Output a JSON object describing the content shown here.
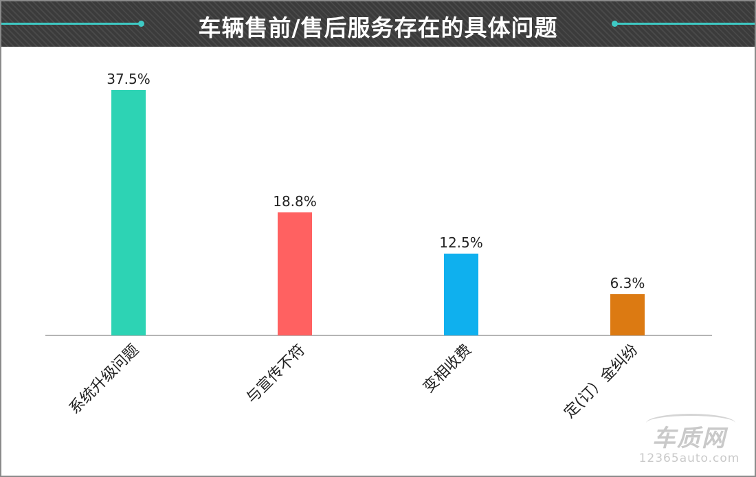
{
  "header": {
    "title": "车辆售前/售后服务存在的具体问题",
    "accent_color": "#3ec9c4",
    "background_color": "#3b3b3b"
  },
  "chart_data": {
    "type": "bar",
    "title": "车辆售前/售后服务存在的具体问题",
    "categories": [
      "系统升级问题",
      "与宣传不符",
      "变相收费",
      "定(订）金纠纷"
    ],
    "values": [
      37.5,
      18.8,
      12.5,
      6.3
    ],
    "value_labels": [
      "37.5%",
      "18.8%",
      "12.5%",
      "6.3%"
    ],
    "colors": [
      "#2dd3b4",
      "#ff6161",
      "#0fb0ee",
      "#dc7a12"
    ],
    "unit": "%",
    "xlabel": "",
    "ylabel": "",
    "ylim": [
      0,
      37.5
    ],
    "grid": false,
    "legend": "none"
  },
  "watermark": {
    "logo": "车质网",
    "url": "12365auto.com"
  }
}
